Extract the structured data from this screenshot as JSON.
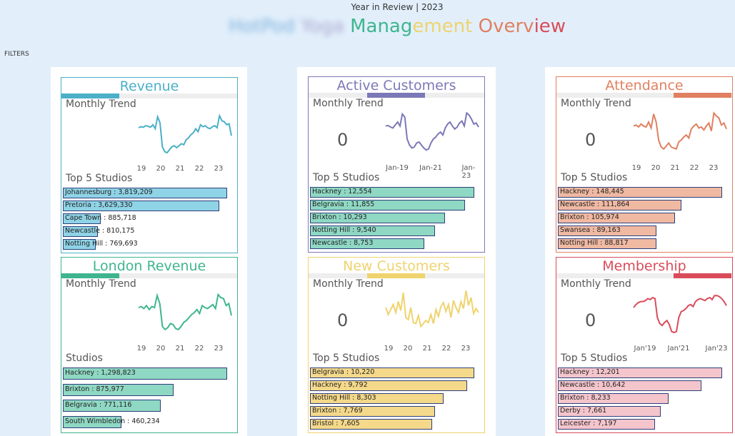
{
  "header": {
    "subtitle": "Year in Review | 2023",
    "title_parts": [
      {
        "text": "HotPod ",
        "color": "#7fb2dc",
        "blurred": true
      },
      {
        "text": "Yoga ",
        "color": "#a9a6cf",
        "blurred": true
      },
      {
        "text": "Manag",
        "color": "#3fb58f"
      },
      {
        "text": "ement ",
        "color": "#efd36e"
      },
      {
        "text": "Overv",
        "color": "#e08060"
      },
      {
        "text": "iew",
        "color": "#d94c5a"
      }
    ]
  },
  "filters_label": "FILTERS",
  "panels": [
    {
      "id": "revenue",
      "title": "Revenue",
      "color": "#4bb0c8",
      "bar_color": "#8fd3e6",
      "indicator_index": 0,
      "trend_label": "Monthly Trend",
      "kpi": null,
      "axis": [
        "19",
        "20",
        "21",
        "22",
        "23"
      ],
      "section_label": "Top 5 Studios",
      "trend": [
        60,
        62,
        61,
        64,
        63,
        61,
        66,
        58,
        82,
        70,
        22,
        12,
        10,
        16,
        22,
        24,
        20,
        24,
        28,
        26,
        36,
        40,
        46,
        50,
        58,
        52,
        66,
        62,
        64,
        60,
        58,
        62,
        64,
        60,
        84,
        74,
        72,
        66,
        68,
        44
      ],
      "studios": [
        {
          "label": "Johannesburg : 3,819,209",
          "value": 3819209
        },
        {
          "label": "Pretoria : 3,629,330",
          "value": 3629330
        },
        {
          "label": "Cape Town : 885,718",
          "value": 885718
        },
        {
          "label": "Newcastle : 810,175",
          "value": 810175
        },
        {
          "label": "Notting Hill : 769,693",
          "value": 769693
        }
      ]
    },
    {
      "id": "active-customers",
      "title": "Active Customers",
      "color": "#7b78b8",
      "bar_color": "#8fd8c3",
      "indicator_index": 1,
      "trend_label": "Monthly Trend",
      "kpi": "0",
      "axis": [
        "Jan-19",
        "Jan-21",
        "Jan-23"
      ],
      "section_label": "Top 5 Studios",
      "trend": [
        62,
        63,
        60,
        58,
        64,
        70,
        62,
        86,
        80,
        36,
        24,
        18,
        20,
        28,
        30,
        24,
        18,
        14,
        16,
        28,
        36,
        40,
        46,
        50,
        44,
        58,
        66,
        70,
        62,
        56,
        60,
        68,
        72,
        62,
        88,
        84,
        76,
        66,
        68,
        60
      ],
      "studios": [
        {
          "label": "Hackney : 12,554",
          "value": 12554
        },
        {
          "label": "Belgravia : 11,855",
          "value": 11855
        },
        {
          "label": "Brixton : 10,293",
          "value": 10293
        },
        {
          "label": "Notting Hill : 9,540",
          "value": 9540
        },
        {
          "label": "Newcastle : 8,753",
          "value": 8753
        }
      ]
    },
    {
      "id": "attendance",
      "title": "Attendance",
      "color": "#e08060",
      "bar_color": "#f0b9a2",
      "indicator_index": 2,
      "trend_label": "Monthly Trend",
      "kpi": "0",
      "axis": [
        "19",
        "20",
        "21",
        "22",
        "23"
      ],
      "section_label": "Top 5 Studios",
      "trend": [
        62,
        64,
        60,
        66,
        62,
        60,
        70,
        58,
        86,
        70,
        34,
        20,
        16,
        22,
        28,
        20,
        18,
        16,
        30,
        34,
        40,
        44,
        38,
        56,
        62,
        66,
        58,
        60,
        54,
        62,
        68,
        52,
        88,
        82,
        78,
        64,
        68,
        56
      ],
      "studios": [
        {
          "label": "Hackney : 148,445",
          "value": 148445
        },
        {
          "label": "Newcastle : 111,864",
          "value": 111864
        },
        {
          "label": "Brixton : 105,974",
          "value": 105974
        },
        {
          "label": "Swansea : 89,163",
          "value": 89163
        },
        {
          "label": "Notting Hill : 88,817",
          "value": 88817
        }
      ]
    },
    {
      "id": "london-revenue",
      "title": "London Revenue",
      "color": "#3fb58f",
      "bar_color": "#8fd8c3",
      "indicator_index": 0,
      "trend_label": "Monthly Trend",
      "kpi": null,
      "axis": [
        "19",
        "20",
        "21",
        "22",
        "23"
      ],
      "section_label": "Studios",
      "trend": [
        60,
        62,
        58,
        64,
        56,
        62,
        60,
        84,
        68,
        22,
        16,
        20,
        28,
        26,
        18,
        16,
        22,
        30,
        34,
        40,
        46,
        50,
        56,
        48,
        64,
        60,
        58,
        62,
        66,
        58,
        86,
        80,
        78,
        64,
        68,
        44
      ],
      "studios": [
        {
          "label": "Hackney : 1,298,823",
          "value": 1298823
        },
        {
          "label": "Brixton : 875,977",
          "value": 875977
        },
        {
          "label": "Belgravia : 771,116",
          "value": 771116
        },
        {
          "label": "South Wimbledon : 460,234",
          "value": 460234
        }
      ]
    },
    {
      "id": "new-customers",
      "title": "New Customers",
      "color": "#efd36e",
      "bar_color": "#f5d98a",
      "indicator_index": 1,
      "trend_label": "Monthly Trend",
      "kpi": "0",
      "axis": [
        "19",
        "20",
        "21",
        "22",
        "23"
      ],
      "section_label": "Top 5 Studios",
      "trend": [
        60,
        46,
        56,
        66,
        50,
        72,
        54,
        90,
        40,
        36,
        60,
        30,
        28,
        44,
        22,
        28,
        34,
        30,
        46,
        28,
        56,
        42,
        62,
        70,
        52,
        66,
        40,
        74,
        60,
        50,
        72,
        58,
        94,
        64,
        80,
        48,
        58,
        50
      ],
      "studios": [
        {
          "label": "Belgravia : 10,220",
          "value": 10220
        },
        {
          "label": "Hackney : 9,792",
          "value": 9792
        },
        {
          "label": "Notting Hill : 8,303",
          "value": 8303
        },
        {
          "label": "Brixton : 7,769",
          "value": 7769
        },
        {
          "label": "Bristol : 7,605",
          "value": 7605
        }
      ]
    },
    {
      "id": "membership",
      "title": "Membership",
      "color": "#d94c5a",
      "bar_color": "#f5c5cc",
      "indicator_index": 2,
      "trend_label": "Monthly Trend",
      "kpi": "0",
      "axis": [
        "Jan'19",
        "Jan'21",
        "Jan'23"
      ],
      "section_label": "Top 5 Studios",
      "trend": [
        60,
        66,
        70,
        72,
        72,
        74,
        78,
        76,
        80,
        78,
        40,
        28,
        24,
        30,
        34,
        26,
        12,
        10,
        12,
        40,
        52,
        54,
        58,
        64,
        66,
        62,
        72,
        76,
        78,
        76,
        74,
        78,
        80,
        76,
        84,
        84,
        82,
        78,
        72,
        64
      ],
      "studios": [
        {
          "label": "Hackney : 12,201",
          "value": 12201
        },
        {
          "label": "Newcastle : 10,642",
          "value": 10642
        },
        {
          "label": "Brixton : 8,233",
          "value": 8233
        },
        {
          "label": "Derby : 7,661",
          "value": 7661
        },
        {
          "label": "Leicester : 7,197",
          "value": 7197
        }
      ]
    }
  ]
}
